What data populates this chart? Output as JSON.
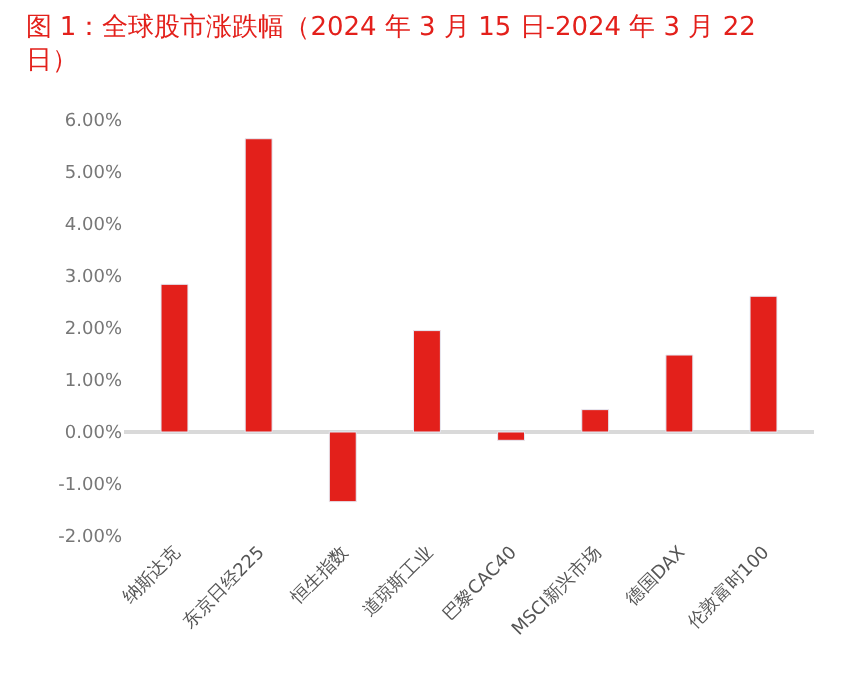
{
  "chart_data": {
    "type": "bar",
    "title": "图 1：全球股市涨跌幅（2024 年 3 月 15 日-2024 年 3 月 22 日）",
    "categories": [
      "纳斯达克",
      "东京日经225",
      "恒生指数",
      "道琼斯工业",
      "巴黎CAC40",
      "MSCI新兴市场",
      "德国DAX",
      "伦敦富时100"
    ],
    "values": [
      2.84,
      5.64,
      -1.34,
      1.95,
      -0.16,
      0.43,
      1.48,
      2.61
    ],
    "color": "#e3201b",
    "ylim": [
      -2,
      6
    ],
    "yticks": [
      {
        "value": -2,
        "label": "-2.00%"
      },
      {
        "value": -1,
        "label": "-1.00%"
      },
      {
        "value": 0,
        "label": "0.00%"
      },
      {
        "value": 1,
        "label": "1.00%"
      },
      {
        "value": 2,
        "label": "2.00%"
      },
      {
        "value": 3,
        "label": "3.00%"
      },
      {
        "value": 4,
        "label": "4.00%"
      },
      {
        "value": 5,
        "label": "5.00%"
      },
      {
        "value": 6,
        "label": "6.00%"
      }
    ],
    "legend": false
  }
}
